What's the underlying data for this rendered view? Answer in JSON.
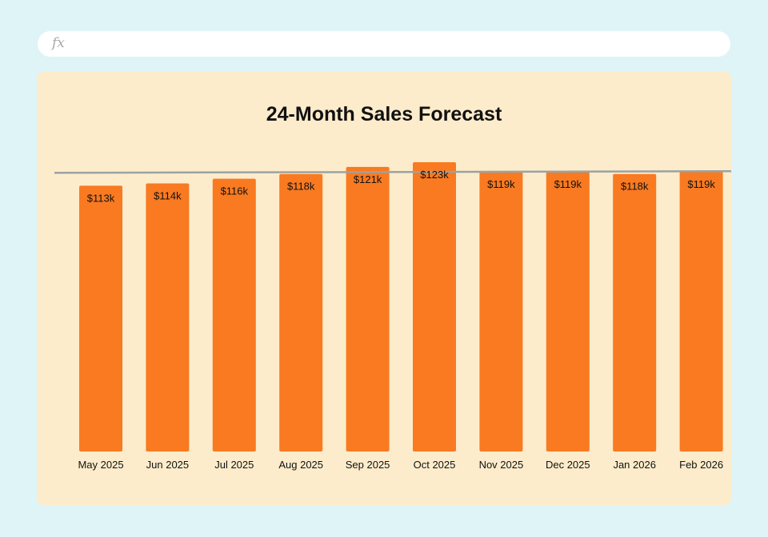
{
  "formula_bar": {
    "icon": "fx-icon",
    "value": ""
  },
  "colors": {
    "background": "#dff4f7",
    "card": "#fdeccb",
    "bar": "#f97a21",
    "reference_line": "#9aa3a3"
  },
  "chart_data": {
    "type": "bar",
    "title": "24-Month Sales Forecast",
    "xlabel": "",
    "ylabel": "",
    "categories": [
      "May 2025",
      "Jun 2025",
      "Jul 2025",
      "Aug 2025",
      "Sep 2025",
      "Oct 2025",
      "Nov 2025",
      "Dec 2025",
      "Jan 2026",
      "Feb 2026"
    ],
    "values": [
      113,
      114,
      116,
      118,
      121,
      123,
      119,
      119,
      118,
      119
    ],
    "data_labels": [
      "$113k",
      "$114k",
      "$116k",
      "$118k",
      "$121k",
      "$123k",
      "$119k",
      "$119k",
      "$118k",
      "$119k"
    ],
    "reference_line": 118.5,
    "ylim": [
      0,
      123
    ],
    "grid": false,
    "legend": "none"
  }
}
